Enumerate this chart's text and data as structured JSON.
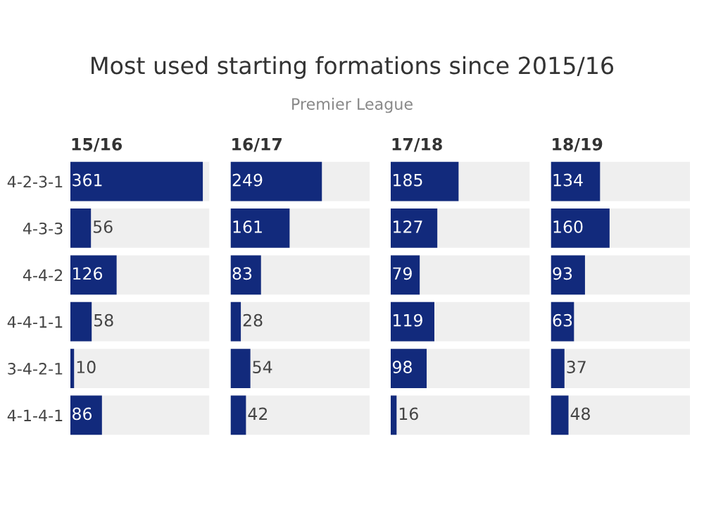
{
  "chart_data": [
    {
      "type": "bar",
      "orientation": "horizontal",
      "title": "15/16",
      "annotations": [
        "Most used starting formations since 2015/16",
        "Premier League"
      ],
      "categories": [
        "4-2-3-1",
        "4-3-3",
        "4-4-2",
        "4-4-1-1",
        "3-4-2-1",
        "4-1-4-1"
      ],
      "values": [
        361,
        56,
        126,
        58,
        10,
        86
      ],
      "color": "#122a7c",
      "data_labels": true,
      "tick_labels": "y"
    },
    {
      "type": "bar",
      "orientation": "horizontal",
      "title": "16/17",
      "categories": [
        null,
        null,
        null,
        null,
        null,
        null
      ],
      "values": [
        249,
        161,
        83,
        28,
        54,
        42
      ],
      "color": "#122a7c",
      "data_labels": true,
      "tick_labels": false
    },
    {
      "type": "bar",
      "orientation": "horizontal",
      "title": "17/18",
      "categories": [
        null,
        null,
        null,
        null,
        null,
        null
      ],
      "values": [
        185,
        127,
        79,
        119,
        98,
        16
      ],
      "color": "#122a7c",
      "data_labels": true,
      "tick_labels": false
    },
    {
      "type": "bar",
      "orientation": "horizontal",
      "title": "18/19",
      "categories": [
        null,
        null,
        null,
        null,
        null,
        null
      ],
      "values": [
        134,
        160,
        93,
        63,
        37,
        48
      ],
      "color": "#122a7c",
      "data_labels": true,
      "tick_labels": false
    }
  ]
}
